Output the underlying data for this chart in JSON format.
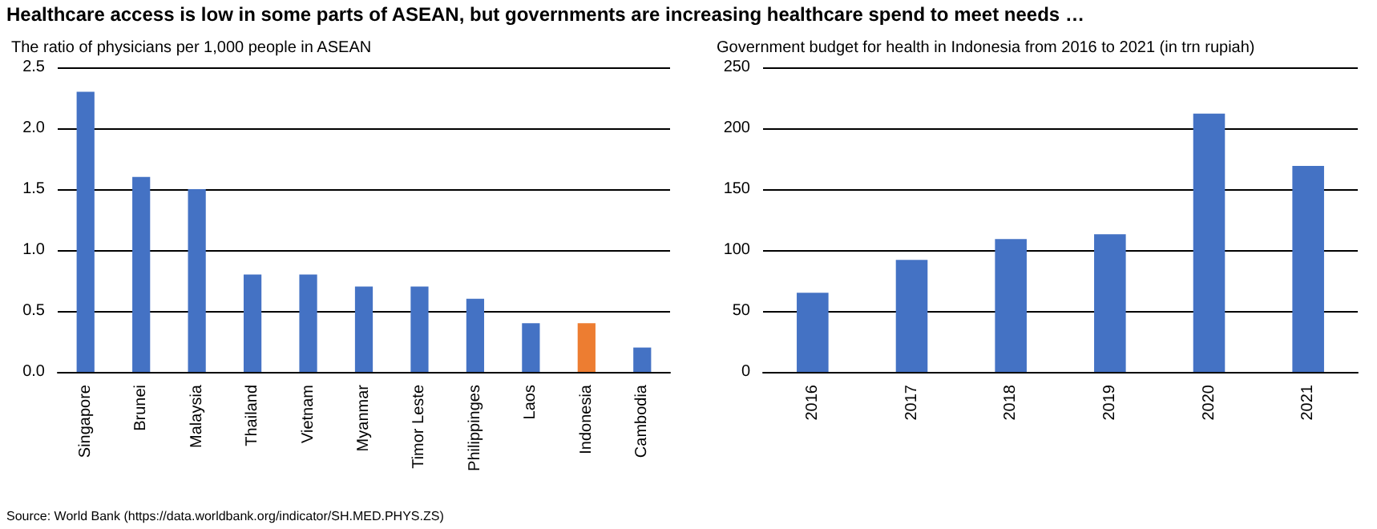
{
  "chart_data": [
    {
      "type": "bar",
      "title": "Healthcare access is low in some parts of ASEAN, but governments are increasing healthcare spend to meet needs …",
      "subtitle": "The ratio of physicians per 1,000 people in ASEAN",
      "categories": [
        "Singapore",
        "Brunei",
        "Malaysia",
        "Thailand",
        "Vietnam",
        "Myanmar",
        "Timor Leste",
        "Philippinges",
        "Laos",
        "Indonesia",
        "Cambodia"
      ],
      "values": [
        2.3,
        1.6,
        1.5,
        0.8,
        0.8,
        0.7,
        0.7,
        0.6,
        0.4,
        0.4,
        0.2
      ],
      "colors": [
        "#4472c4",
        "#4472c4",
        "#4472c4",
        "#4472c4",
        "#4472c4",
        "#4472c4",
        "#4472c4",
        "#4472c4",
        "#4472c4",
        "#ed7d31",
        "#4472c4"
      ],
      "ylim": [
        0,
        2.5
      ],
      "yticks": [
        {
          "value": 0,
          "label": "0.0"
        },
        {
          "value": 0.5,
          "label": "0.5"
        },
        {
          "value": 1,
          "label": "1.0"
        },
        {
          "value": 1.5,
          "label": "1.5"
        },
        {
          "value": 2,
          "label": "2.0"
        },
        {
          "value": 2.5,
          "label": "2.5"
        }
      ],
      "grid": "y",
      "annotations": [
        "Source: World Bank (https://data.worldbank.org/indicator/SH.MED.PHYS.ZS)"
      ]
    },
    {
      "type": "bar",
      "subtitle": "Government budget for health in Indonesia from 2016 to 2021 (in trn rupiah)",
      "categories": [
        "2016",
        "2017",
        "2018",
        "2019",
        "2020",
        "2021"
      ],
      "values": [
        65,
        92,
        109,
        113,
        212,
        169
      ],
      "color": "#4472c4",
      "ylim": [
        0,
        250
      ],
      "yticks": [
        0,
        50,
        100,
        150,
        200,
        250
      ],
      "grid": "y"
    }
  ]
}
